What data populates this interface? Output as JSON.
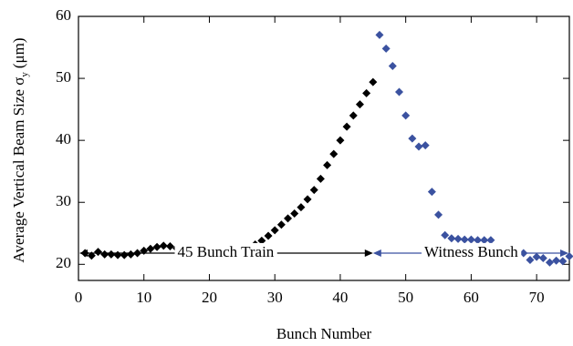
{
  "chart_data": {
    "type": "scatter",
    "xlabel": "Bunch Number",
    "ylabel": "Average Vertical Beam Size σ",
    "ylabel_sub": "y",
    "ylabel_unit": "(μm)",
    "xlim": [
      0,
      75
    ],
    "ylim": [
      17.4,
      60
    ],
    "xticks": [
      0,
      10,
      20,
      30,
      40,
      50,
      60,
      70
    ],
    "yticks": [
      20,
      30,
      40,
      50,
      60
    ],
    "annotations": [
      "45 Bunch Train",
      "Witness Bunch"
    ],
    "series": [
      {
        "name": "45 Bunch Train",
        "color": "#000000",
        "x": [
          1,
          2,
          3,
          4,
          5,
          6,
          7,
          8,
          9,
          10,
          11,
          12,
          13,
          14,
          15,
          16,
          17,
          18,
          19,
          20,
          21,
          22,
          23,
          24,
          25,
          26,
          27,
          28,
          29,
          30,
          31,
          32,
          33,
          34,
          35,
          36,
          37,
          38,
          39,
          40,
          41,
          42,
          43,
          44,
          45
        ],
        "values": [
          21.8,
          21.4,
          22.0,
          21.6,
          21.6,
          21.5,
          21.5,
          21.6,
          21.8,
          22.2,
          22.5,
          22.8,
          23.0,
          22.9,
          22.6,
          22.5,
          22.3,
          22.1,
          22.0,
          21.9,
          21.8,
          21.7,
          21.7,
          21.8,
          22.0,
          22.4,
          23.2,
          23.8,
          24.6,
          25.5,
          26.4,
          27.4,
          28.2,
          29.2,
          30.5,
          32.0,
          33.8,
          36.0,
          37.8,
          40.0,
          42.2,
          44.0,
          45.8,
          47.6,
          49.4
        ]
      },
      {
        "name": "Witness Bunch",
        "color": "#3b52a0",
        "x": [
          46,
          47,
          48,
          49,
          50,
          51,
          52,
          53,
          54,
          55,
          56,
          57,
          58,
          59,
          60,
          61,
          62,
          63,
          64,
          65,
          66,
          67,
          68,
          69,
          70,
          71,
          72,
          73,
          74,
          75
        ],
        "values": [
          57.0,
          54.8,
          52.0,
          47.8,
          44.0,
          40.3,
          39.0,
          39.2,
          31.7,
          28.0,
          24.7,
          24.2,
          24.1,
          24.0,
          24.0,
          23.9,
          23.9,
          23.9,
          22.2,
          22.5,
          22.0,
          21.9,
          21.8,
          20.7,
          21.2,
          21.0,
          20.3,
          20.6,
          20.5,
          21.3
        ]
      }
    ]
  }
}
